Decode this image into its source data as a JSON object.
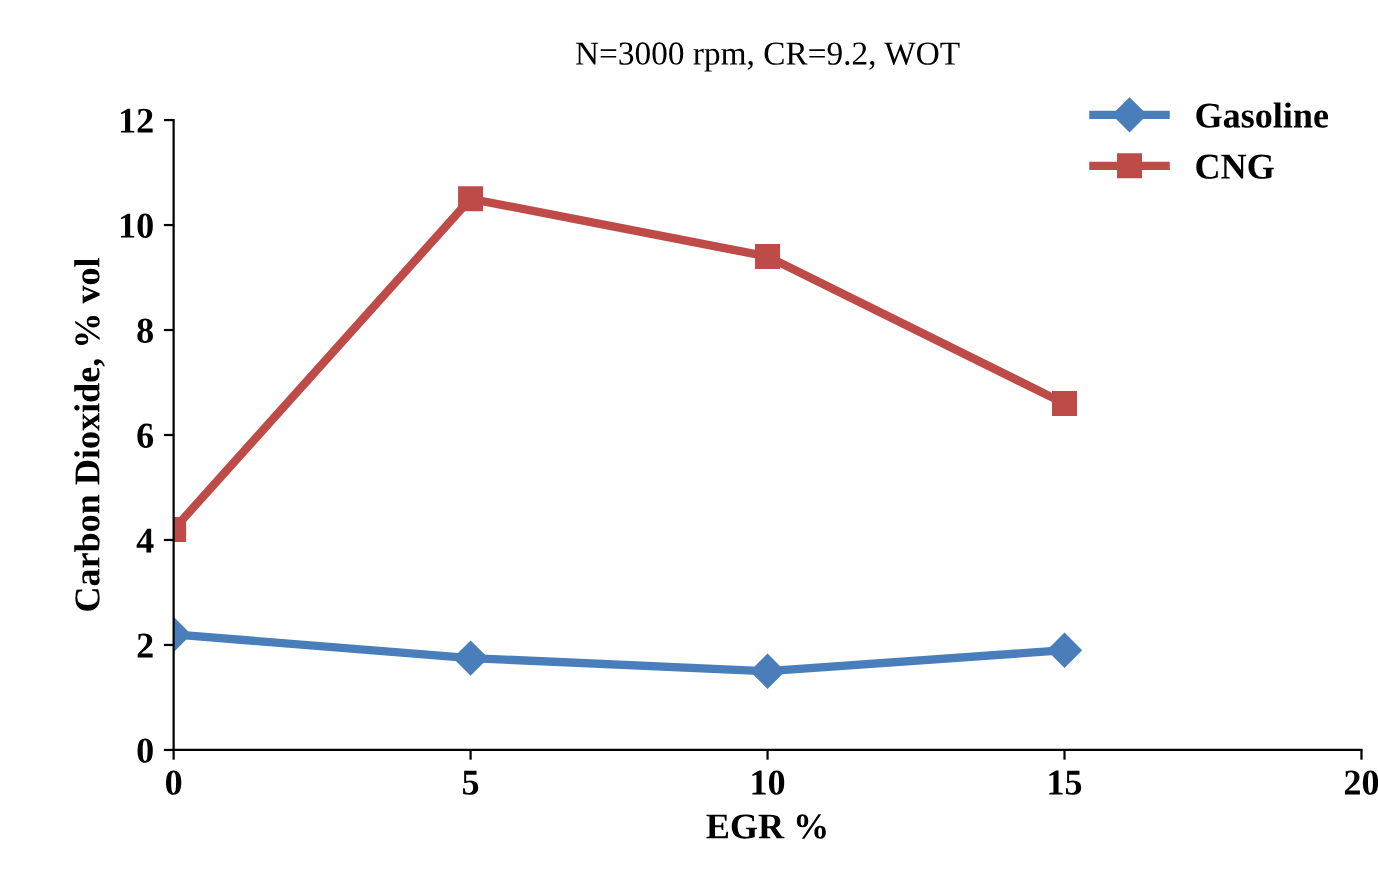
{
  "chart_data": {
    "type": "line",
    "title": "N=3000 rpm, CR=9.2, WOT",
    "xlabel": "EGR %",
    "ylabel": "Carbon Dioxide, % vol",
    "x": [
      0,
      5,
      10,
      15
    ],
    "series": [
      {
        "name": "Gasoline",
        "color": "#4a7ebb",
        "values": [
          2.2,
          1.75,
          1.5,
          1.9
        ],
        "marker": "diamond"
      },
      {
        "name": "CNG",
        "color": "#be4b48",
        "values": [
          4.2,
          10.5,
          9.4,
          6.6
        ],
        "marker": "square"
      }
    ],
    "xlim": [
      0,
      20
    ],
    "xticks": [
      0,
      5,
      10,
      15,
      20
    ],
    "ylim": [
      0,
      12
    ],
    "yticks": [
      0,
      2,
      4,
      6,
      8,
      10,
      12
    ],
    "grid": false,
    "legend": "top right",
    "line_style": "solid"
  }
}
